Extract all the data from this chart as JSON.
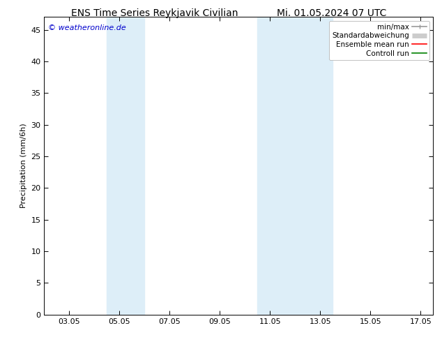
{
  "title_left": "ENS Time Series Reykjavik Civilian",
  "title_right": "Mi. 01.05.2024 07 UTC",
  "ylabel": "Precipitation (mm/6h)",
  "watermark": "© weatheronline.de",
  "watermark_color": "#0000cc",
  "ylim": [
    0,
    47
  ],
  "yticks": [
    0,
    5,
    10,
    15,
    20,
    25,
    30,
    35,
    40,
    45
  ],
  "xtick_labels": [
    "03.05",
    "05.05",
    "07.05",
    "09.05",
    "11.05",
    "13.05",
    "15.05",
    "17.05"
  ],
  "xtick_positions": [
    3,
    5,
    7,
    9,
    11,
    13,
    15,
    17
  ],
  "xlim": [
    2.0,
    17.5
  ],
  "shaded_bands": [
    {
      "xmin": 4.5,
      "xmax": 6.0,
      "color": "#ddeef8"
    },
    {
      "xmin": 10.5,
      "xmax": 12.0,
      "color": "#ddeef8"
    },
    {
      "xmin": 12.0,
      "xmax": 13.5,
      "color": "#ddeef8"
    }
  ],
  "legend_items": [
    {
      "label": "min/max",
      "color": "#999999",
      "lw": 1.2,
      "style": "line_with_caps"
    },
    {
      "label": "Standardabweichung",
      "color": "#cccccc",
      "lw": 5,
      "style": "thick"
    },
    {
      "label": "Ensemble mean run",
      "color": "#ff0000",
      "lw": 1.2,
      "style": "line"
    },
    {
      "label": "Controll run",
      "color": "#008000",
      "lw": 1.2,
      "style": "line"
    }
  ],
  "background_color": "#ffffff",
  "plot_bg_color": "#ffffff",
  "title_fontsize": 10,
  "tick_fontsize": 8,
  "ylabel_fontsize": 8,
  "watermark_fontsize": 8,
  "legend_fontsize": 7.5
}
